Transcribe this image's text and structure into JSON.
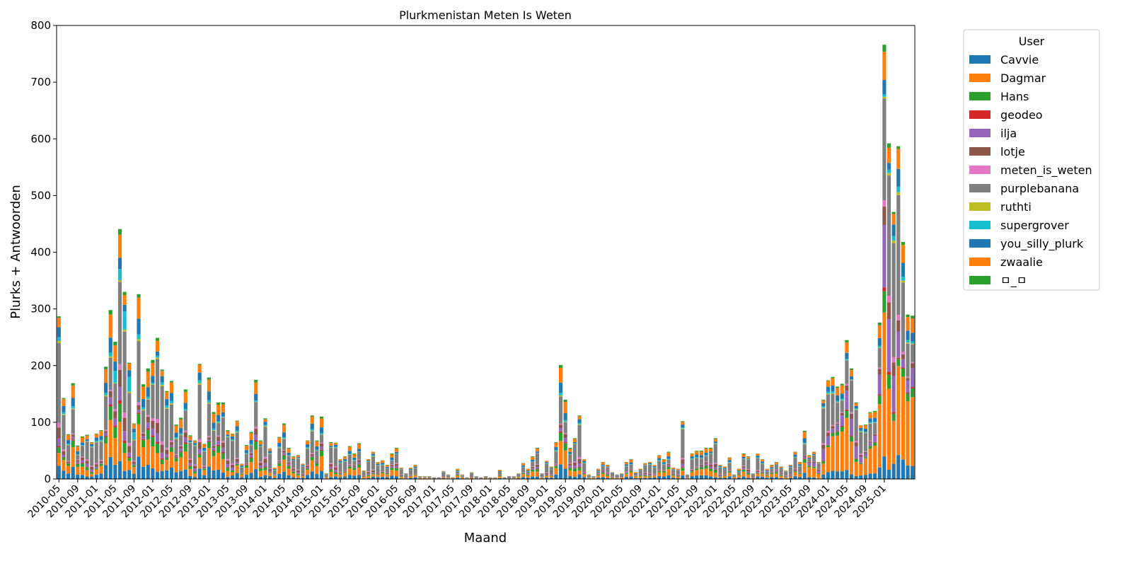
{
  "chart_data": {
    "type": "bar",
    "stacked": true,
    "title": "Plurkmenistan Meten Is Weten",
    "xlabel": "Maand",
    "ylabel": "Plurks + Antwoorden",
    "ylim": [
      0,
      800
    ],
    "yticks": [
      0,
      100,
      200,
      300,
      400,
      500,
      600,
      700,
      800
    ],
    "start_month": "2010-05",
    "end_month": "2025-05",
    "x_tick_labels": [
      "2010-05",
      "2010-09",
      "2011-01",
      "2011-05",
      "2011-09",
      "2012-01",
      "2012-05",
      "2012-09",
      "2013-01",
      "2013-05",
      "2013-09",
      "2014-01",
      "2014-05",
      "2014-09",
      "2015-01",
      "2015-05",
      "2015-09",
      "2016-01",
      "2016-05",
      "2016-09",
      "2017-01",
      "2017-05",
      "2017-09",
      "2018-01",
      "2018-05",
      "2018-09",
      "2019-01",
      "2019-05",
      "2019-09",
      "2020-01",
      "2020-05",
      "2020-09",
      "2021-01",
      "2021-05",
      "2021-09",
      "2022-01",
      "2022-05",
      "2022-09",
      "2023-01",
      "2023-05",
      "2023-09",
      "2024-01",
      "2024-05",
      "2024-09",
      "2025-01"
    ],
    "grid": false,
    "legend": {
      "title": "User",
      "position": "outside-right",
      "entries": [
        "Cavvie",
        "Dagmar",
        "Hans",
        "geodeo",
        "ilja",
        "lotje",
        "meten_is_weten",
        "purplebanana",
        "ruthti",
        "supergrover",
        "you_silly_plurk",
        "zwaalie",
        "ㅁ_ㅁ"
      ]
    },
    "series_colors": [
      "#1f77b4",
      "#ff7f0e",
      "#2ca02c",
      "#d62728",
      "#9467bd",
      "#8c564b",
      "#e377c2",
      "#7f7f7f",
      "#bcbd22",
      "#17becf",
      "#1f77b4",
      "#ff7f0e",
      "#2ca02c"
    ],
    "totals": [
      287,
      143,
      79,
      169,
      59,
      75,
      78,
      65,
      80,
      86,
      198,
      298,
      242,
      441,
      330,
      205,
      98,
      326,
      167,
      195,
      210,
      249,
      193,
      155,
      173,
      96,
      108,
      158,
      77,
      68,
      203,
      62,
      179,
      118,
      135,
      135,
      86,
      80,
      103,
      27,
      60,
      83,
      175,
      68,
      107,
      54,
      20,
      74,
      98,
      55,
      40,
      42,
      27,
      68,
      112,
      68,
      110,
      10,
      65,
      64,
      35,
      40,
      58,
      45,
      63,
      15,
      35,
      48,
      30,
      33,
      25,
      45,
      55,
      20,
      10,
      20,
      25,
      5,
      5,
      5,
      3,
      3,
      14,
      8,
      3,
      18,
      8,
      3,
      12,
      5,
      3,
      5,
      3,
      3,
      16,
      3,
      5,
      5,
      10,
      28,
      18,
      40,
      55,
      10,
      32,
      22,
      65,
      201,
      140,
      55,
      72,
      112,
      35,
      8,
      5,
      18,
      30,
      25,
      12,
      8,
      10,
      30,
      35,
      12,
      18,
      28,
      30,
      25,
      42,
      35,
      48,
      20,
      18,
      102,
      8,
      45,
      50,
      50,
      55,
      55,
      72,
      25,
      22,
      38,
      8,
      18,
      45,
      40,
      10,
      45,
      35,
      18,
      25,
      30,
      22,
      15,
      25,
      48,
      30,
      85,
      42,
      48,
      30,
      140,
      174,
      180,
      163,
      168,
      245,
      195,
      135,
      95,
      96,
      118,
      120,
      276,
      766,
      592,
      471,
      587,
      418,
      290,
      288
    ]
  }
}
